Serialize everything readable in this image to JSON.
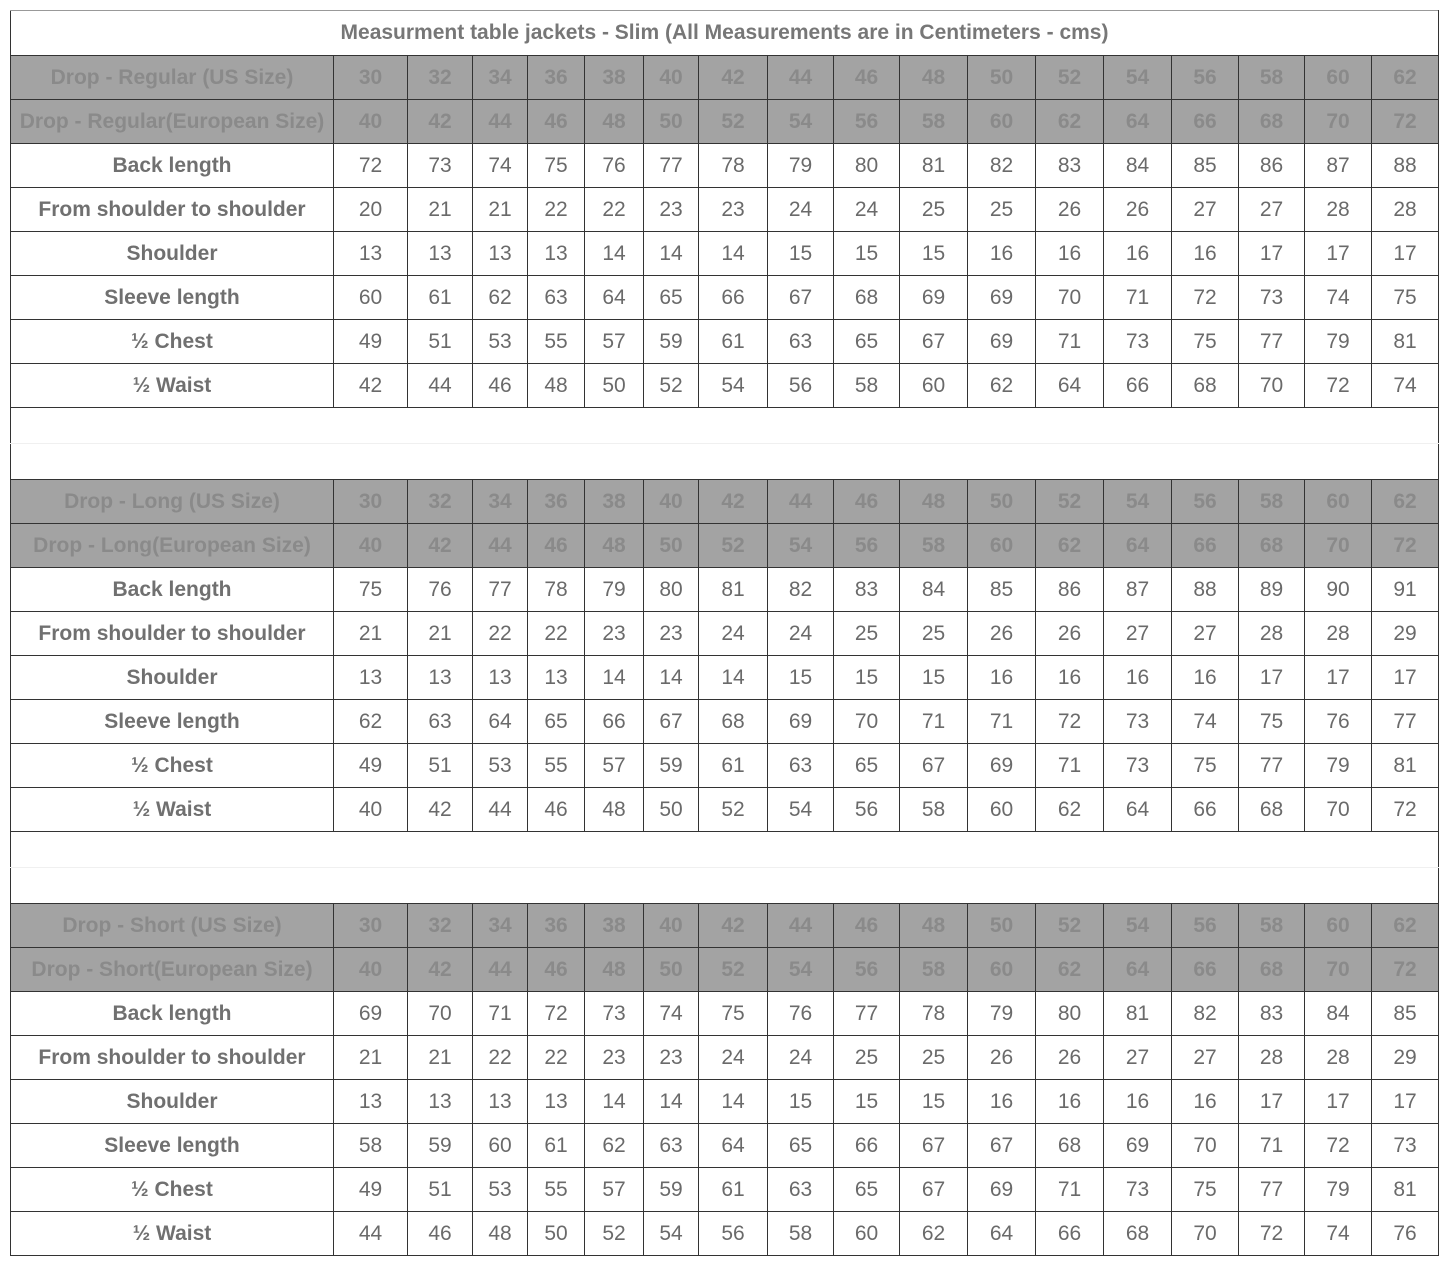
{
  "title": "Measurment table jackets - Slim (All Measurements are in Centimeters - cms)",
  "colors": {
    "header_bg": "#a3a3a3",
    "header_text": "#8a8a8a",
    "body_text": "#6a6a6a",
    "border": "#333333"
  },
  "sections": [
    {
      "us_label": "Drop - Regular (US Size)",
      "eu_label": "Drop - Regular(European Size)",
      "us_sizes": [
        "30",
        "32",
        "34",
        "36",
        "38",
        "40",
        "42",
        "44",
        "46",
        "48",
        "50",
        "52",
        "54",
        "56",
        "58",
        "60",
        "62"
      ],
      "eu_sizes": [
        "40",
        "42",
        "44",
        "46",
        "48",
        "50",
        "52",
        "54",
        "56",
        "58",
        "60",
        "62",
        "64",
        "66",
        "68",
        "70",
        "72"
      ],
      "rows": [
        {
          "label": "Back length",
          "values": [
            "72",
            "73",
            "74",
            "75",
            "76",
            "77",
            "78",
            "79",
            "80",
            "81",
            "82",
            "83",
            "84",
            "85",
            "86",
            "87",
            "88"
          ]
        },
        {
          "label": "From shoulder to shoulder",
          "values": [
            "20",
            "21",
            "21",
            "22",
            "22",
            "23",
            "23",
            "24",
            "24",
            "25",
            "25",
            "26",
            "26",
            "27",
            "27",
            "28",
            "28"
          ]
        },
        {
          "label": "Shoulder",
          "values": [
            "13",
            "13",
            "13",
            "13",
            "14",
            "14",
            "14",
            "15",
            "15",
            "15",
            "16",
            "16",
            "16",
            "16",
            "17",
            "17",
            "17"
          ]
        },
        {
          "label": "Sleeve length",
          "values": [
            "60",
            "61",
            "62",
            "63",
            "64",
            "65",
            "66",
            "67",
            "68",
            "69",
            "69",
            "70",
            "71",
            "72",
            "73",
            "74",
            "75"
          ]
        },
        {
          "label": "½ Chest",
          "values": [
            "49",
            "51",
            "53",
            "55",
            "57",
            "59",
            "61",
            "63",
            "65",
            "67",
            "69",
            "71",
            "73",
            "75",
            "77",
            "79",
            "81"
          ]
        },
        {
          "label": "½ Waist",
          "values": [
            "42",
            "44",
            "46",
            "48",
            "50",
            "52",
            "54",
            "56",
            "58",
            "60",
            "62",
            "64",
            "66",
            "68",
            "70",
            "72",
            "74"
          ]
        }
      ]
    },
    {
      "us_label": "Drop - Long (US Size)",
      "eu_label": "Drop - Long(European Size)",
      "us_sizes": [
        "30",
        "32",
        "34",
        "36",
        "38",
        "40",
        "42",
        "44",
        "46",
        "48",
        "50",
        "52",
        "54",
        "56",
        "58",
        "60",
        "62"
      ],
      "eu_sizes": [
        "40",
        "42",
        "44",
        "46",
        "48",
        "50",
        "52",
        "54",
        "56",
        "58",
        "60",
        "62",
        "64",
        "66",
        "68",
        "70",
        "72"
      ],
      "rows": [
        {
          "label": "Back length",
          "values": [
            "75",
            "76",
            "77",
            "78",
            "79",
            "80",
            "81",
            "82",
            "83",
            "84",
            "85",
            "86",
            "87",
            "88",
            "89",
            "90",
            "91"
          ]
        },
        {
          "label": "From shoulder to shoulder",
          "values": [
            "21",
            "21",
            "22",
            "22",
            "23",
            "23",
            "24",
            "24",
            "25",
            "25",
            "26",
            "26",
            "27",
            "27",
            "28",
            "28",
            "29"
          ]
        },
        {
          "label": "Shoulder",
          "values": [
            "13",
            "13",
            "13",
            "13",
            "14",
            "14",
            "14",
            "15",
            "15",
            "15",
            "16",
            "16",
            "16",
            "16",
            "17",
            "17",
            "17"
          ]
        },
        {
          "label": "Sleeve length",
          "values": [
            "62",
            "63",
            "64",
            "65",
            "66",
            "67",
            "68",
            "69",
            "70",
            "71",
            "71",
            "72",
            "73",
            "74",
            "75",
            "76",
            "77"
          ]
        },
        {
          "label": "½ Chest",
          "values": [
            "49",
            "51",
            "53",
            "55",
            "57",
            "59",
            "61",
            "63",
            "65",
            "67",
            "69",
            "71",
            "73",
            "75",
            "77",
            "79",
            "81"
          ]
        },
        {
          "label": "½ Waist",
          "values": [
            "40",
            "42",
            "44",
            "46",
            "48",
            "50",
            "52",
            "54",
            "56",
            "58",
            "60",
            "62",
            "64",
            "66",
            "68",
            "70",
            "72"
          ]
        }
      ]
    },
    {
      "us_label": "Drop - Short (US Size)",
      "eu_label": "Drop - Short(European Size)",
      "us_sizes": [
        "30",
        "32",
        "34",
        "36",
        "38",
        "40",
        "42",
        "44",
        "46",
        "48",
        "50",
        "52",
        "54",
        "56",
        "58",
        "60",
        "62"
      ],
      "eu_sizes": [
        "40",
        "42",
        "44",
        "46",
        "48",
        "50",
        "52",
        "54",
        "56",
        "58",
        "60",
        "62",
        "64",
        "66",
        "68",
        "70",
        "72"
      ],
      "rows": [
        {
          "label": "Back length",
          "values": [
            "69",
            "70",
            "71",
            "72",
            "73",
            "74",
            "75",
            "76",
            "77",
            "78",
            "79",
            "80",
            "81",
            "82",
            "83",
            "84",
            "85"
          ]
        },
        {
          "label": "From shoulder to shoulder",
          "values": [
            "21",
            "21",
            "22",
            "22",
            "23",
            "23",
            "24",
            "24",
            "25",
            "25",
            "26",
            "26",
            "27",
            "27",
            "28",
            "28",
            "29"
          ]
        },
        {
          "label": "Shoulder",
          "values": [
            "13",
            "13",
            "13",
            "13",
            "14",
            "14",
            "14",
            "15",
            "15",
            "15",
            "16",
            "16",
            "16",
            "16",
            "17",
            "17",
            "17"
          ]
        },
        {
          "label": "Sleeve length",
          "values": [
            "58",
            "59",
            "60",
            "61",
            "62",
            "63",
            "64",
            "65",
            "66",
            "67",
            "67",
            "68",
            "69",
            "70",
            "71",
            "72",
            "73"
          ]
        },
        {
          "label": "½ Chest",
          "values": [
            "49",
            "51",
            "53",
            "55",
            "57",
            "59",
            "61",
            "63",
            "65",
            "67",
            "69",
            "71",
            "73",
            "75",
            "77",
            "79",
            "81"
          ]
        },
        {
          "label": "½ Waist",
          "values": [
            "44",
            "46",
            "48",
            "50",
            "52",
            "54",
            "56",
            "58",
            "60",
            "62",
            "64",
            "66",
            "68",
            "70",
            "72",
            "74",
            "76"
          ]
        }
      ]
    }
  ]
}
